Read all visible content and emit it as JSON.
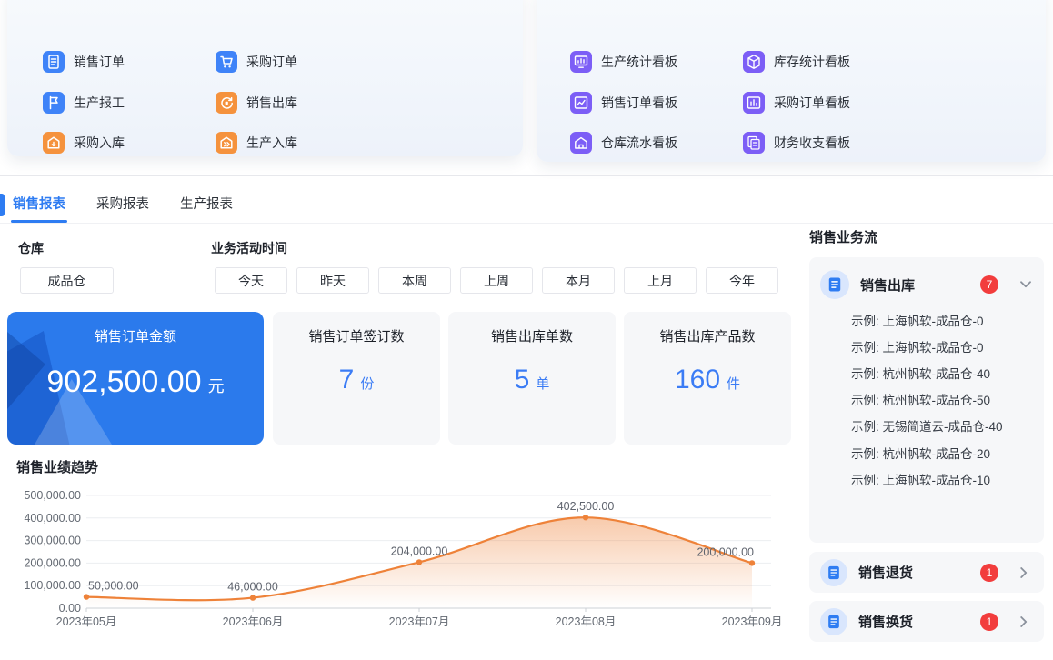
{
  "quick_left": {
    "items": [
      {
        "label": "销售订单",
        "icon": "sales-order"
      },
      {
        "label": "采购订单",
        "icon": "purchase-order"
      },
      {
        "label": "生产报工",
        "icon": "production-report"
      },
      {
        "label": "销售出库",
        "icon": "sales-outbound"
      },
      {
        "label": "采购入库",
        "icon": "purchase-inbound"
      },
      {
        "label": "生产入库",
        "icon": "production-inbound"
      }
    ]
  },
  "quick_right": {
    "items": [
      {
        "label": "生产统计看板",
        "icon": "production-stats-board"
      },
      {
        "label": "库存统计看板",
        "icon": "inventory-stats-board"
      },
      {
        "label": "销售订单看板",
        "icon": "sales-order-board"
      },
      {
        "label": "采购订单看板",
        "icon": "purchase-order-board"
      },
      {
        "label": "仓库流水看板",
        "icon": "warehouse-flow-board"
      },
      {
        "label": "财务收支看板",
        "icon": "finance-board"
      }
    ]
  },
  "tabs": {
    "items": [
      {
        "label": "销售报表",
        "active": true
      },
      {
        "label": "采购报表",
        "active": false
      },
      {
        "label": "生产报表",
        "active": false
      }
    ]
  },
  "filters": {
    "warehouse_label": "仓库",
    "warehouse_value": "成品仓",
    "time_label": "业务活动时间",
    "time_options": [
      "今天",
      "昨天",
      "本周",
      "上周",
      "本月",
      "上月",
      "今年"
    ]
  },
  "kpis": [
    {
      "title": "销售订单金额",
      "value": "902,500.00",
      "unit": "元"
    },
    {
      "title": "销售订单签订数",
      "value": "7",
      "unit": "份"
    },
    {
      "title": "销售出库单数",
      "value": "5",
      "unit": "单"
    },
    {
      "title": "销售出库产品数",
      "value": "160",
      "unit": "件"
    }
  ],
  "chart_data": {
    "type": "line",
    "title": "销售业绩趋势",
    "x": [
      "2023年05月",
      "2023年06月",
      "2023年07月",
      "2023年08月",
      "2023年09月"
    ],
    "values": [
      50000,
      46000,
      204000,
      402500,
      200000
    ],
    "point_labels": [
      "50,000.00",
      "46,000.00",
      "204,000.00",
      "402,500.00",
      "200,000.00"
    ],
    "y_ticks": [
      "500,000.00",
      "400,000.00",
      "300,000.00",
      "200,000.00",
      "100,000.00",
      "0.00"
    ],
    "ylim": [
      0,
      500000
    ],
    "xlabel": "",
    "ylabel": "",
    "smooth": true,
    "area": true,
    "grid": true,
    "legend": "none",
    "line_color": "#ee8239"
  },
  "sidebar": {
    "title": "销售业务流",
    "sections": [
      {
        "label": "销售出库",
        "badge": "7",
        "expanded": true,
        "items": [
          "示例: 上海帆软-成品仓-0",
          "示例: 上海帆软-成品仓-0",
          "示例: 杭州帆软-成品仓-40",
          "示例: 杭州帆软-成品仓-50",
          "示例: 无锡简道云-成品仓-40",
          "示例: 杭州帆软-成品仓-20",
          "示例: 上海帆软-成品仓-10"
        ]
      },
      {
        "label": "销售退货",
        "badge": "1",
        "expanded": false
      },
      {
        "label": "销售换货",
        "badge": "1",
        "expanded": false
      }
    ]
  },
  "colors": {
    "accent_blue": "#2e7cf2",
    "icon_blue": "#3f83f8",
    "icon_orange": "#f5923d",
    "icon_purple": "#7c5ef6",
    "badge_red": "#f23d3d",
    "chart_orange": "#ee8239",
    "kpi_card_blue": "#2b7aec",
    "card_gray": "#f6f7f9"
  }
}
